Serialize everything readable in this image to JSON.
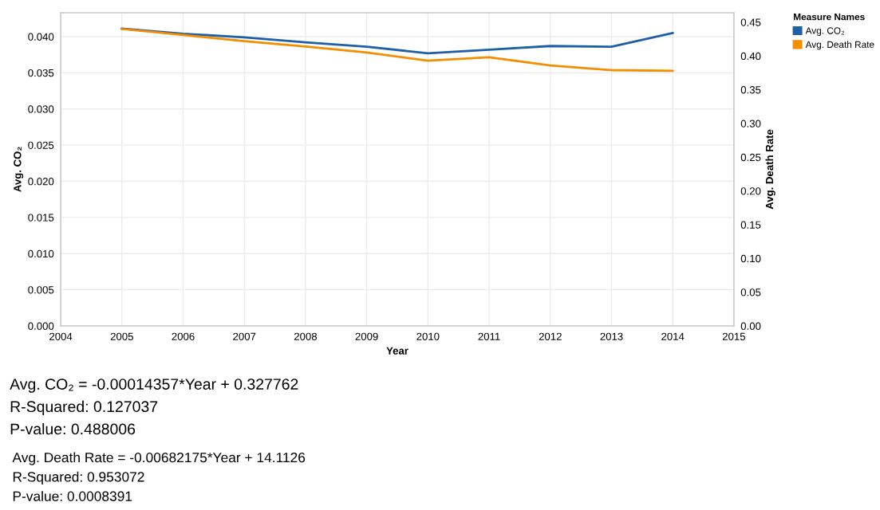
{
  "chart_data": {
    "type": "line",
    "x": [
      2005,
      2006,
      2007,
      2008,
      2009,
      2010,
      2011,
      2012,
      2013,
      2014
    ],
    "series": [
      {
        "name": "Avg. CO₂",
        "color": "#1f5fa6",
        "values": [
          0.0411,
          0.0404,
          0.0399,
          0.0392,
          0.0386,
          0.0377,
          0.0382,
          0.0387,
          0.0386,
          0.0405
        ]
      },
      {
        "name": "Avg. Death Rate",
        "color": "#f28e00",
        "axis": "y2",
        "values": [
          0.44,
          0.431,
          0.422,
          0.414,
          0.405,
          0.393,
          0.398,
          0.386,
          0.379,
          0.378
        ]
      }
    ],
    "xlabel": "Year",
    "ylabel": "Avg. CO₂",
    "y2label": "Avg. Death Rate",
    "legend_title": "Measure Names",
    "xlim": [
      2004,
      2015
    ],
    "xticks": [
      2004,
      2005,
      2006,
      2007,
      2008,
      2009,
      2010,
      2011,
      2012,
      2013,
      2014,
      2015
    ],
    "ylim": [
      0,
      0.0433
    ],
    "yticks": [
      {
        "value": 0,
        "label": "0.000"
      },
      {
        "value": 0.005,
        "label": "0.005"
      },
      {
        "value": 0.01,
        "label": "0.010"
      },
      {
        "value": 0.015,
        "label": "0.015"
      },
      {
        "value": 0.02,
        "label": "0.020"
      },
      {
        "value": 0.025,
        "label": "0.025"
      },
      {
        "value": 0.03,
        "label": "0.030"
      },
      {
        "value": 0.035,
        "label": "0.035"
      },
      {
        "value": 0.04,
        "label": "0.040"
      }
    ],
    "y2lim": [
      0,
      0.464
    ],
    "y2ticks": [
      {
        "value": 0,
        "label": "0.00"
      },
      {
        "value": 0.05,
        "label": "0.05"
      },
      {
        "value": 0.1,
        "label": "0.10"
      },
      {
        "value": 0.15,
        "label": "0.15"
      },
      {
        "value": 0.2,
        "label": "0.20"
      },
      {
        "value": 0.25,
        "label": "0.25"
      },
      {
        "value": 0.3,
        "label": "0.30"
      },
      {
        "value": 0.35,
        "label": "0.35"
      },
      {
        "value": 0.4,
        "label": "0.40"
      },
      {
        "value": 0.45,
        "label": "0.45"
      }
    ],
    "grid": true,
    "legend": "top right",
    "marker": "none",
    "line_style": "solid",
    "annotations": [
      "Avg. CO₂ = -0.00014357*Year + 0.327762",
      "R-Squared: 0.127037",
      "P-value: 0.488006",
      "Avg. Death Rate = -0.00682175*Year + 14.1126",
      "R-Squared: 0.953072",
      "P-value: 0.0008391"
    ]
  }
}
